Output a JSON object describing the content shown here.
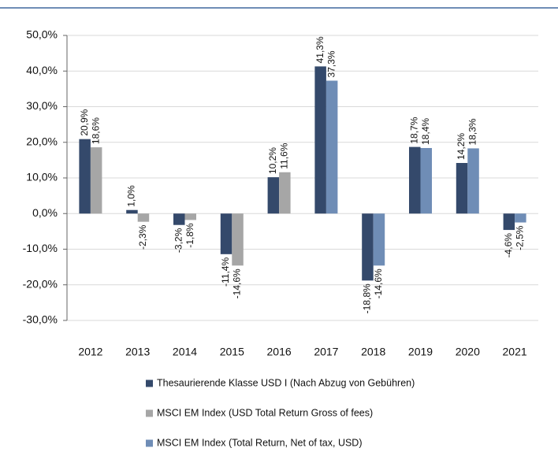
{
  "chart_data": {
    "type": "bar",
    "categories": [
      "2012",
      "2013",
      "2014",
      "2015",
      "2016",
      "2017",
      "2018",
      "2019",
      "2020",
      "2021"
    ],
    "series": [
      {
        "name": "Thesaurierende Klasse USD I (Nach Abzug von Gebühren)",
        "color": "#34496b",
        "values": [
          20.9,
          1.0,
          -3.2,
          -11.4,
          10.2,
          41.3,
          -18.8,
          18.7,
          14.2,
          -4.6
        ],
        "value_labels": [
          "20,9%",
          "1,0%",
          "-3,2%",
          "-11,4%",
          "10,2%",
          "41,3%",
          "-18,8%",
          "18,7%",
          "14,2%",
          "-4,6%"
        ]
      },
      {
        "name": "MSCI EM Index (USD Total Return Gross of fees)",
        "color": "#a6a6a6",
        "values": [
          18.6,
          -2.3,
          -1.8,
          -14.6,
          11.6,
          null,
          null,
          null,
          null,
          null
        ],
        "value_labels": [
          "18,6%",
          "-2,3%",
          "-1,8%",
          "-14,6%",
          "11,6%",
          null,
          null,
          null,
          null,
          null
        ]
      },
      {
        "name": "MSCI EM Index (Total Return, Net of tax, USD)",
        "color": "#6f8db6",
        "values": [
          null,
          null,
          null,
          null,
          null,
          37.3,
          -14.6,
          18.4,
          18.3,
          -2.5
        ],
        "value_labels": [
          null,
          null,
          null,
          null,
          null,
          "37,3%",
          "-14,6%",
          "18,4%",
          "18,3%",
          "-2,5%"
        ]
      }
    ],
    "ylim": [
      -30,
      50
    ],
    "yticks": [
      {
        "value": -30,
        "label": "-30,0%"
      },
      {
        "value": -20,
        "label": "-20,0%"
      },
      {
        "value": -10,
        "label": "-10,0%"
      },
      {
        "value": 0,
        "label": "0,0%"
      },
      {
        "value": 10,
        "label": "10,0%"
      },
      {
        "value": 20,
        "label": "20,0%"
      },
      {
        "value": 30,
        "label": "30,0%"
      },
      {
        "value": 40,
        "label": "40,0%"
      },
      {
        "value": 50,
        "label": "50,0%"
      }
    ],
    "grid": true
  }
}
